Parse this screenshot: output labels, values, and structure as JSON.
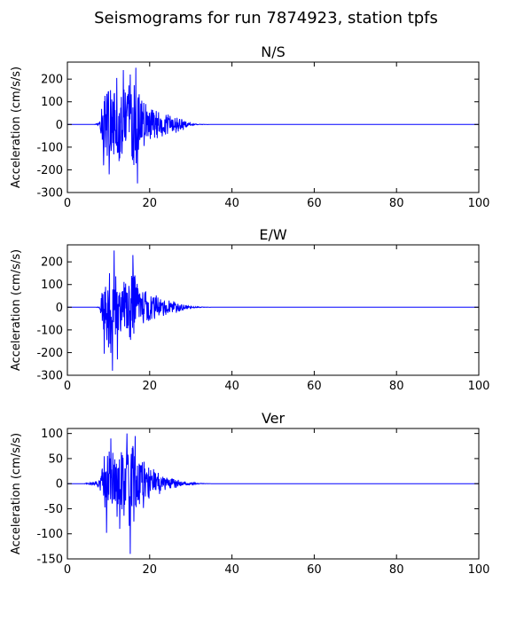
{
  "figure": {
    "title": "Seismograms for run 7874923, station tpfs"
  },
  "chart_data": [
    {
      "type": "line",
      "title": "N/S",
      "xlabel": "",
      "ylabel": "Acceleration (cm/s/s)",
      "xlim": [
        0,
        100
      ],
      "ylim": [
        -300,
        275
      ],
      "xticks": [
        0,
        20,
        40,
        60,
        80,
        100
      ],
      "yticks": [
        -300,
        -200,
        -100,
        0,
        100,
        200
      ],
      "grid": false,
      "color": "#0000ff",
      "onset": 7.5,
      "peak_positive": 250,
      "peak_negative": -260,
      "envelope": [
        [
          0,
          0
        ],
        [
          6.5,
          0
        ],
        [
          7.0,
          4
        ],
        [
          7.8,
          10
        ],
        [
          8.3,
          80
        ],
        [
          9.0,
          160
        ],
        [
          10.0,
          200
        ],
        [
          11.0,
          210
        ],
        [
          12.0,
          190
        ],
        [
          13.0,
          180
        ],
        [
          14.0,
          175
        ],
        [
          15.0,
          200
        ],
        [
          16.0,
          230
        ],
        [
          17.0,
          240
        ],
        [
          18.0,
          150
        ],
        [
          19.0,
          120
        ],
        [
          20.0,
          100
        ],
        [
          21.0,
          70
        ],
        [
          22.0,
          60
        ],
        [
          23.0,
          55
        ],
        [
          24.0,
          50
        ],
        [
          25.0,
          45
        ],
        [
          26.0,
          38
        ],
        [
          27.0,
          35
        ],
        [
          28.0,
          28
        ],
        [
          29.0,
          15
        ],
        [
          30.0,
          6
        ],
        [
          31.0,
          3
        ],
        [
          33.0,
          1
        ],
        [
          35.0,
          0
        ],
        [
          100,
          0
        ]
      ],
      "spikes": [
        [
          15.3,
          220
        ],
        [
          16.6,
          250
        ],
        [
          17.0,
          -260
        ],
        [
          10.2,
          -220
        ],
        [
          12.0,
          205
        ],
        [
          13.6,
          240
        ],
        [
          8.8,
          -180
        ]
      ]
    },
    {
      "type": "line",
      "title": "E/W",
      "xlabel": "",
      "ylabel": "Acceleration (cm/s/s)",
      "xlim": [
        0,
        100
      ],
      "ylim": [
        -300,
        275
      ],
      "xticks": [
        0,
        20,
        40,
        60,
        80,
        100
      ],
      "yticks": [
        -300,
        -200,
        -100,
        0,
        100,
        200
      ],
      "grid": false,
      "color": "#0000ff",
      "onset": 7.5,
      "peak_positive": 250,
      "peak_negative": -280,
      "envelope": [
        [
          0,
          0
        ],
        [
          7.0,
          0
        ],
        [
          7.8,
          5
        ],
        [
          8.3,
          60
        ],
        [
          9.0,
          130
        ],
        [
          10.0,
          190
        ],
        [
          11.0,
          220
        ],
        [
          12.0,
          160
        ],
        [
          13.0,
          120
        ],
        [
          14.0,
          130
        ],
        [
          15.0,
          150
        ],
        [
          16.0,
          170
        ],
        [
          17.0,
          120
        ],
        [
          18.0,
          90
        ],
        [
          19.0,
          80
        ],
        [
          20.0,
          70
        ],
        [
          21.0,
          60
        ],
        [
          22.0,
          55
        ],
        [
          23.0,
          45
        ],
        [
          24.0,
          40
        ],
        [
          25.0,
          35
        ],
        [
          26.0,
          30
        ],
        [
          27.0,
          22
        ],
        [
          28.0,
          15
        ],
        [
          29.0,
          10
        ],
        [
          30.0,
          5
        ],
        [
          32.0,
          2
        ],
        [
          35.0,
          0
        ],
        [
          100,
          0
        ]
      ],
      "spikes": [
        [
          11.4,
          250
        ],
        [
          11.0,
          -280
        ],
        [
          15.9,
          230
        ],
        [
          12.2,
          -230
        ],
        [
          9.0,
          -205
        ],
        [
          16.4,
          140
        ]
      ]
    },
    {
      "type": "line",
      "title": "Ver",
      "xlabel": "",
      "ylabel": "Acceleration (cm/s/s)",
      "xlim": [
        0,
        100
      ],
      "ylim": [
        -150,
        110
      ],
      "xticks": [
        0,
        20,
        40,
        60,
        80,
        100
      ],
      "yticks": [
        -150,
        -100,
        -50,
        0,
        50,
        100
      ],
      "grid": false,
      "color": "#0000ff",
      "onset": 4.5,
      "peak_positive": 100,
      "peak_negative": -140,
      "envelope": [
        [
          0,
          0
        ],
        [
          4.0,
          0
        ],
        [
          5.0,
          2
        ],
        [
          6.0,
          3
        ],
        [
          7.0,
          5
        ],
        [
          7.8,
          10
        ],
        [
          8.3,
          40
        ],
        [
          9.0,
          60
        ],
        [
          10.0,
          70
        ],
        [
          11.0,
          80
        ],
        [
          12.0,
          75
        ],
        [
          13.0,
          70
        ],
        [
          14.0,
          85
        ],
        [
          15.0,
          95
        ],
        [
          16.0,
          90
        ],
        [
          17.0,
          70
        ],
        [
          18.0,
          55
        ],
        [
          19.0,
          45
        ],
        [
          20.0,
          35
        ],
        [
          21.0,
          30
        ],
        [
          22.0,
          25
        ],
        [
          23.0,
          20
        ],
        [
          24.0,
          15
        ],
        [
          25.0,
          12
        ],
        [
          26.0,
          10
        ],
        [
          27.0,
          8
        ],
        [
          28.0,
          6
        ],
        [
          29.0,
          4
        ],
        [
          30.0,
          3
        ],
        [
          32.0,
          1
        ],
        [
          35.0,
          0
        ],
        [
          100,
          0
        ]
      ],
      "spikes": [
        [
          15.3,
          -140
        ],
        [
          14.5,
          100
        ],
        [
          10.6,
          90
        ],
        [
          9.5,
          -98
        ],
        [
          16.5,
          95
        ],
        [
          12.7,
          -90
        ]
      ]
    }
  ]
}
